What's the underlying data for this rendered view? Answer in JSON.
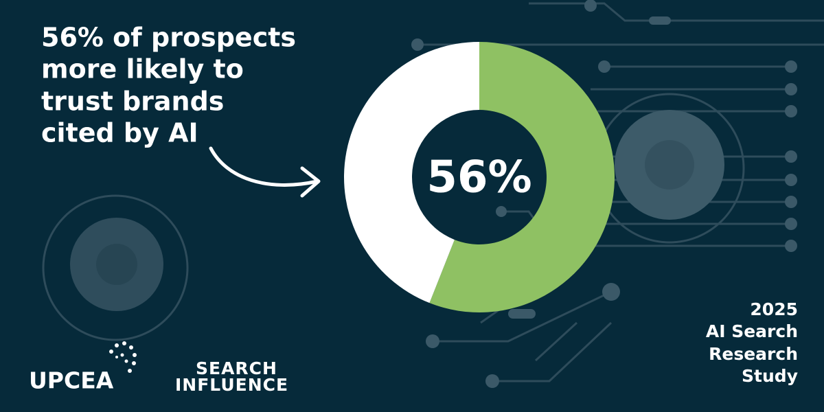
{
  "chart_data": {
    "type": "donut",
    "title": [
      "56% of prospects",
      "more likely to",
      "trust brands",
      "cited by AI"
    ],
    "values": [
      56,
      44
    ],
    "value_labels": [
      "56%",
      null
    ],
    "colors": [
      "#8fc163",
      "#ffffff"
    ],
    "annotation": [
      "2025",
      "AI Search",
      "Research",
      "Study"
    ],
    "logos": [
      "UPCEA",
      "SEARCH",
      "INFLUENCE"
    ]
  }
}
